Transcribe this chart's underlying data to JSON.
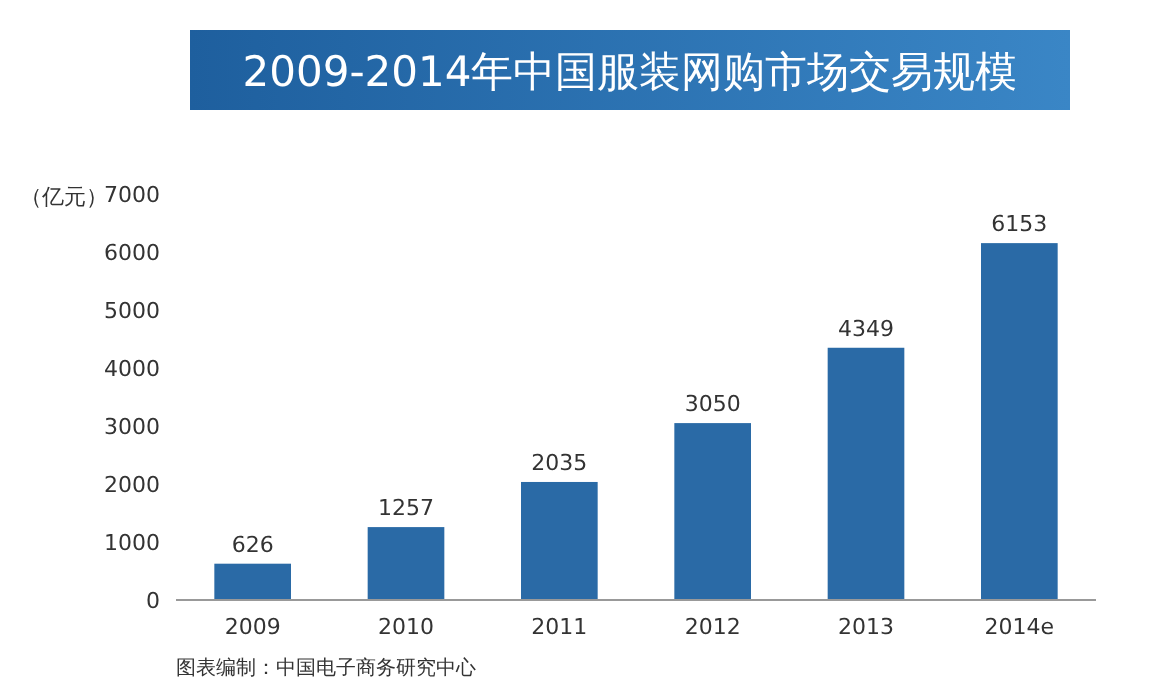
{
  "chart_data": {
    "type": "bar",
    "title": "2009-2014年中国服装网购市场交易规模",
    "ylabel": "（亿元）",
    "categories": [
      "2009",
      "2010",
      "2011",
      "2012",
      "2013",
      "2014e"
    ],
    "values": [
      626,
      1257,
      2035,
      3050,
      4349,
      6153
    ],
    "color": "#2a6aa6",
    "data_labels": true,
    "ylim": [
      0,
      7000
    ],
    "yticks": [
      0,
      1000,
      2000,
      3000,
      4000,
      5000,
      6000,
      7000
    ],
    "grid": false,
    "annotations": [
      "图表编制：中国电子商务研究中心"
    ]
  }
}
